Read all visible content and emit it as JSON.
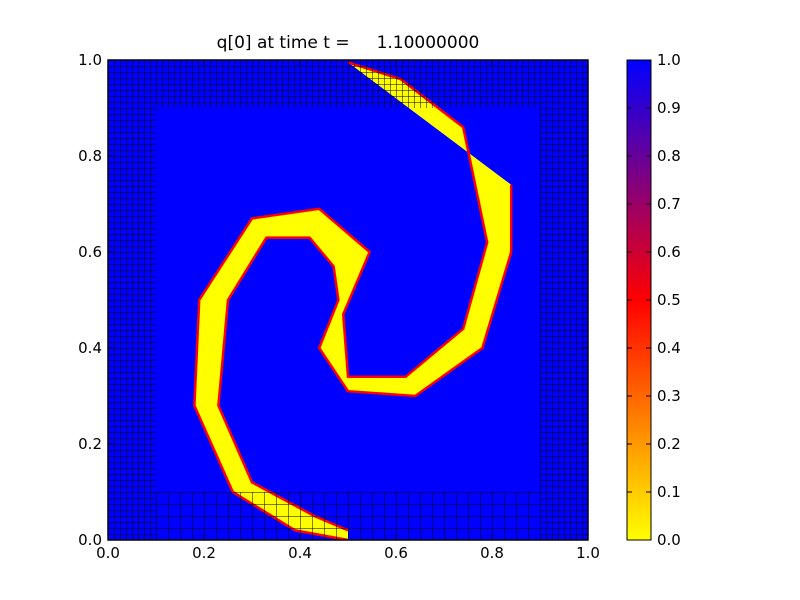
{
  "chart_data": {
    "type": "heatmap",
    "title": "q[0] at time t =     1.10000000",
    "xlim": [
      0.0,
      1.0
    ],
    "ylim": [
      0.0,
      1.0
    ],
    "xticks": [
      "0.0",
      "0.2",
      "0.4",
      "0.6",
      "0.8",
      "1.0"
    ],
    "yticks": [
      "0.0",
      "0.2",
      "0.4",
      "0.6",
      "0.8",
      "1.0"
    ],
    "colorbar": {
      "range": [
        0.0,
        1.0
      ],
      "ticks": [
        "0.0",
        "0.1",
        "0.2",
        "0.3",
        "0.4",
        "0.5",
        "0.6",
        "0.7",
        "0.8",
        "0.9",
        "1.0"
      ],
      "colors": [
        "#ffff00",
        "#ff8000",
        "#ff0000",
        "#800080",
        "#0000ff"
      ]
    },
    "field_colors": {
      "low": "#ffff00",
      "high": "#0000ff",
      "interface": "#ff0000"
    },
    "spiral_front": {
      "start": [
        0.5,
        0.0
      ],
      "points": [
        [
          0.39,
          0.02
        ],
        [
          0.26,
          0.1
        ],
        [
          0.18,
          0.28
        ],
        [
          0.19,
          0.5
        ],
        [
          0.3,
          0.67
        ],
        [
          0.44,
          0.69
        ],
        [
          0.545,
          0.6
        ],
        [
          0.49,
          0.47
        ],
        [
          0.5,
          0.34
        ],
        [
          0.62,
          0.34
        ],
        [
          0.74,
          0.44
        ],
        [
          0.79,
          0.62
        ],
        [
          0.74,
          0.86
        ],
        [
          0.61,
          0.96
        ],
        [
          0.5,
          0.995
        ]
      ],
      "inner_points": [
        [
          0.84,
          0.74
        ],
        [
          0.84,
          0.6
        ],
        [
          0.78,
          0.4
        ],
        [
          0.64,
          0.3
        ],
        [
          0.5,
          0.31
        ],
        [
          0.44,
          0.4
        ],
        [
          0.48,
          0.5
        ],
        [
          0.47,
          0.57
        ],
        [
          0.42,
          0.63
        ],
        [
          0.33,
          0.63
        ],
        [
          0.25,
          0.5
        ],
        [
          0.23,
          0.28
        ],
        [
          0.3,
          0.12
        ],
        [
          0.43,
          0.05
        ],
        [
          0.5,
          0.02
        ]
      ]
    }
  }
}
